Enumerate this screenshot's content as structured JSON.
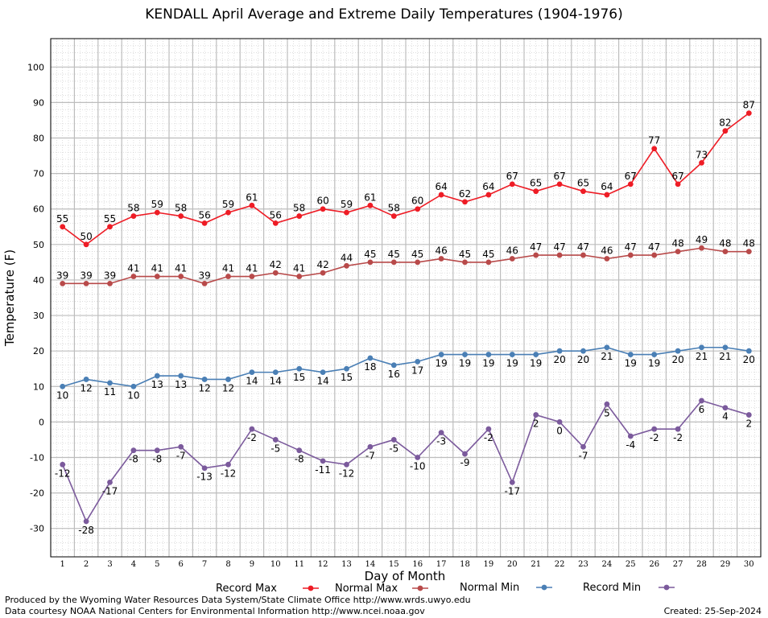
{
  "chart_data": {
    "type": "line",
    "title": "KENDALL April Average and Extreme Daily Temperatures (1904-1976)",
    "xlabel": "Day of Month",
    "ylabel": "Temperature (F)",
    "x": [
      1,
      2,
      3,
      4,
      5,
      6,
      7,
      8,
      9,
      10,
      11,
      12,
      13,
      14,
      15,
      16,
      17,
      18,
      19,
      20,
      21,
      22,
      23,
      24,
      25,
      26,
      27,
      28,
      29,
      30
    ],
    "ylim": [
      -38,
      108
    ],
    "yticks": [
      -30,
      -20,
      -10,
      0,
      10,
      20,
      30,
      40,
      50,
      60,
      70,
      80,
      90,
      100
    ],
    "grid": true,
    "legend_position": "bottom",
    "series": [
      {
        "name": "Record Max",
        "color": "#ee1c25",
        "values": [
          55,
          50,
          55,
          58,
          59,
          58,
          56,
          59,
          61,
          56,
          58,
          60,
          59,
          61,
          58,
          60,
          64,
          62,
          64,
          67,
          65,
          67,
          65,
          64,
          67,
          77,
          67,
          73,
          82,
          87
        ]
      },
      {
        "name": "Normal Max",
        "color": "#b84a4a",
        "values": [
          39,
          39,
          39,
          41,
          41,
          41,
          39,
          41,
          41,
          42,
          41,
          42,
          44,
          45,
          45,
          45,
          46,
          45,
          45,
          46,
          47,
          47,
          47,
          46,
          47,
          47,
          48,
          49,
          48,
          48
        ]
      },
      {
        "name": "Normal Min",
        "color": "#4a7fb5",
        "values": [
          10,
          12,
          11,
          10,
          13,
          13,
          12,
          12,
          14,
          14,
          15,
          14,
          15,
          18,
          16,
          17,
          19,
          19,
          19,
          19,
          19,
          20,
          20,
          21,
          19,
          19,
          20,
          21,
          21,
          20
        ]
      },
      {
        "name": "Record Min",
        "color": "#7b5a9c",
        "values": [
          -12,
          -28,
          -17,
          -8,
          -8,
          -7,
          -13,
          -12,
          -2,
          -5,
          -8,
          -11,
          -12,
          -7,
          -5,
          -10,
          -3,
          -9,
          -2,
          -17,
          2,
          0,
          -7,
          5,
          -4,
          -2,
          -2,
          6,
          4,
          2
        ]
      }
    ]
  },
  "footer": {
    "produced": "Produced by the Wyoming Water Resources Data System/State Climate Office http://www.wrds.uwyo.edu",
    "courtesy": "Data courtesy NOAA National Centers for Environmental Information http://www.ncei.noaa.gov",
    "created": "Created:  25-Sep-2024"
  }
}
